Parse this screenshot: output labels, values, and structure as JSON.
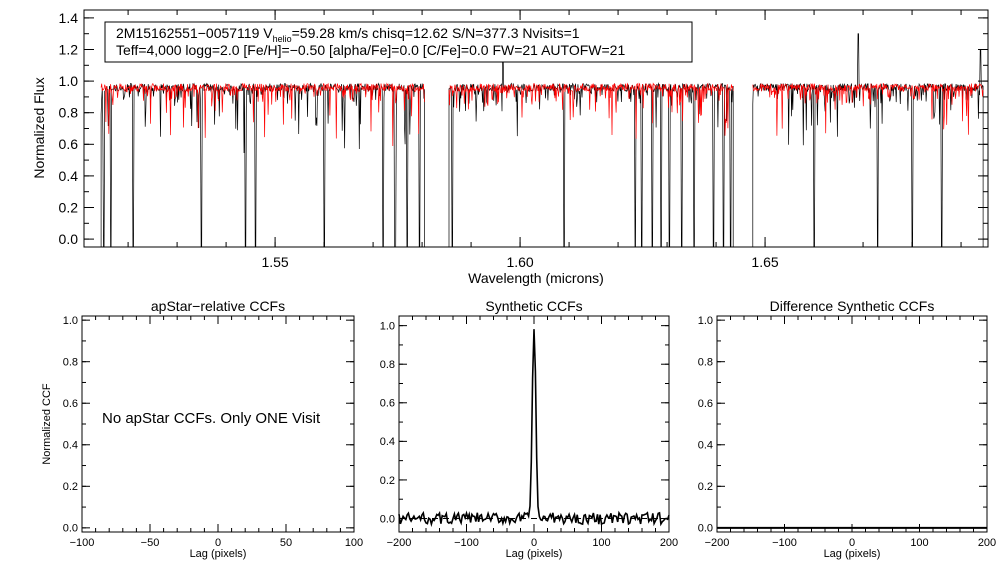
{
  "chart_data": [
    {
      "type": "line",
      "id": "spectrum",
      "header_lines": [
        "2M15162551−0057119  V",
        "helio",
        "=59.28 km/s  chisq=12.62  S/N=377.3  Nvisits=1",
        "Teff=4,000 logg=2.0 [Fe/H]=−0.50 [alpha/Fe]=0.0 [C/Fe]=0.0 FW=21 AUTOFW=21"
      ],
      "xlabel": "Wavelength (microns)",
      "ylabel": "Normalized Flux",
      "xlim": [
        1.511,
        1.6955
      ],
      "ylim": [
        -0.05,
        1.45
      ],
      "xticks": [
        1.55,
        1.6,
        1.65
      ],
      "xtick_labels": [
        "1.55",
        "1.60",
        "1.65"
      ],
      "yticks": [
        0.0,
        0.2,
        0.4,
        0.6,
        0.8,
        1.0,
        1.2,
        1.4
      ],
      "ytick_labels": [
        "0.0",
        "0.2",
        "0.4",
        "0.6",
        "0.8",
        "1.0",
        "1.2",
        "1.4"
      ],
      "chips": [
        [
          1.5145,
          1.5805
        ],
        [
          1.5855,
          1.6435
        ],
        [
          1.6475,
          1.6945
        ]
      ],
      "deep_lines": [
        1.515,
        1.5165,
        1.521,
        1.535,
        1.544,
        1.546,
        1.56,
        1.572,
        1.5745,
        1.577,
        1.5795,
        1.5862,
        1.609,
        1.6235,
        1.6248,
        1.627,
        1.6288,
        1.6305,
        1.633,
        1.6355,
        1.6395,
        1.6415,
        1.643,
        1.66,
        1.669,
        1.673,
        1.68,
        1.686
      ],
      "emission_lines": [
        [
          1.5965,
          1.15
        ],
        [
          1.669,
          1.3
        ],
        [
          1.694,
          1.2
        ]
      ],
      "series": [
        {
          "name": "observed",
          "color": "#000000"
        },
        {
          "name": "model",
          "color": "#ff0000"
        }
      ]
    },
    {
      "type": "line",
      "id": "apstar-ccf",
      "title": "apStar−relative CCFs",
      "xlabel": "Lag (pixels)",
      "ylabel": "Normalized CCF",
      "xlim": [
        -100,
        100
      ],
      "ylim": [
        -0.02,
        1.02
      ],
      "xticks": [
        -100,
        -50,
        0,
        50,
        100
      ],
      "xtick_labels": [
        "−100",
        "−50",
        "0",
        "50",
        "100"
      ],
      "yticks": [
        0.0,
        0.2,
        0.4,
        0.6,
        0.8,
        1.0
      ],
      "ytick_labels": [
        "0.0",
        "0.2",
        "0.4",
        "0.6",
        "0.8",
        "1.0"
      ],
      "annotation": "No apStar CCFs.  Only ONE Visit"
    },
    {
      "type": "line",
      "id": "synthetic-ccf",
      "title": "Synthetic CCFs",
      "xlabel": "Lag (pixels)",
      "xlim": [
        -200,
        200
      ],
      "ylim": [
        -0.07,
        1.05
      ],
      "xticks": [
        -200,
        -100,
        0,
        100,
        200
      ],
      "xtick_labels": [
        "−200",
        "−100",
        "0",
        "100",
        "200"
      ],
      "yticks": [
        0.0,
        0.2,
        0.4,
        0.6,
        0.8,
        1.0
      ],
      "ytick_labels": [
        "0.0",
        "0.2",
        "0.4",
        "0.6",
        "0.8",
        "1.0"
      ],
      "peak": {
        "x": 0,
        "y": 1.0,
        "fwhm_pixels": 6
      },
      "baseline": 0.0,
      "noise_amplitude": 0.03
    },
    {
      "type": "line",
      "id": "difference-ccf",
      "title": "Difference Synthetic CCFs",
      "xlim": [
        -200,
        200
      ],
      "xlabel": "Lag (pixels)",
      "ylim": [
        -0.02,
        1.02
      ],
      "xticks": [
        -200,
        -100,
        0,
        100,
        200
      ],
      "xtick_labels": [
        "−200",
        "−100",
        "0",
        "100",
        "200"
      ],
      "yticks": [
        0.0,
        0.2,
        0.4,
        0.6,
        0.8,
        1.0
      ],
      "ytick_labels": [
        "0.0",
        "0.2",
        "0.4",
        "0.6",
        "0.8",
        "1.0"
      ],
      "values": [
        0.0,
        0.0
      ]
    }
  ]
}
